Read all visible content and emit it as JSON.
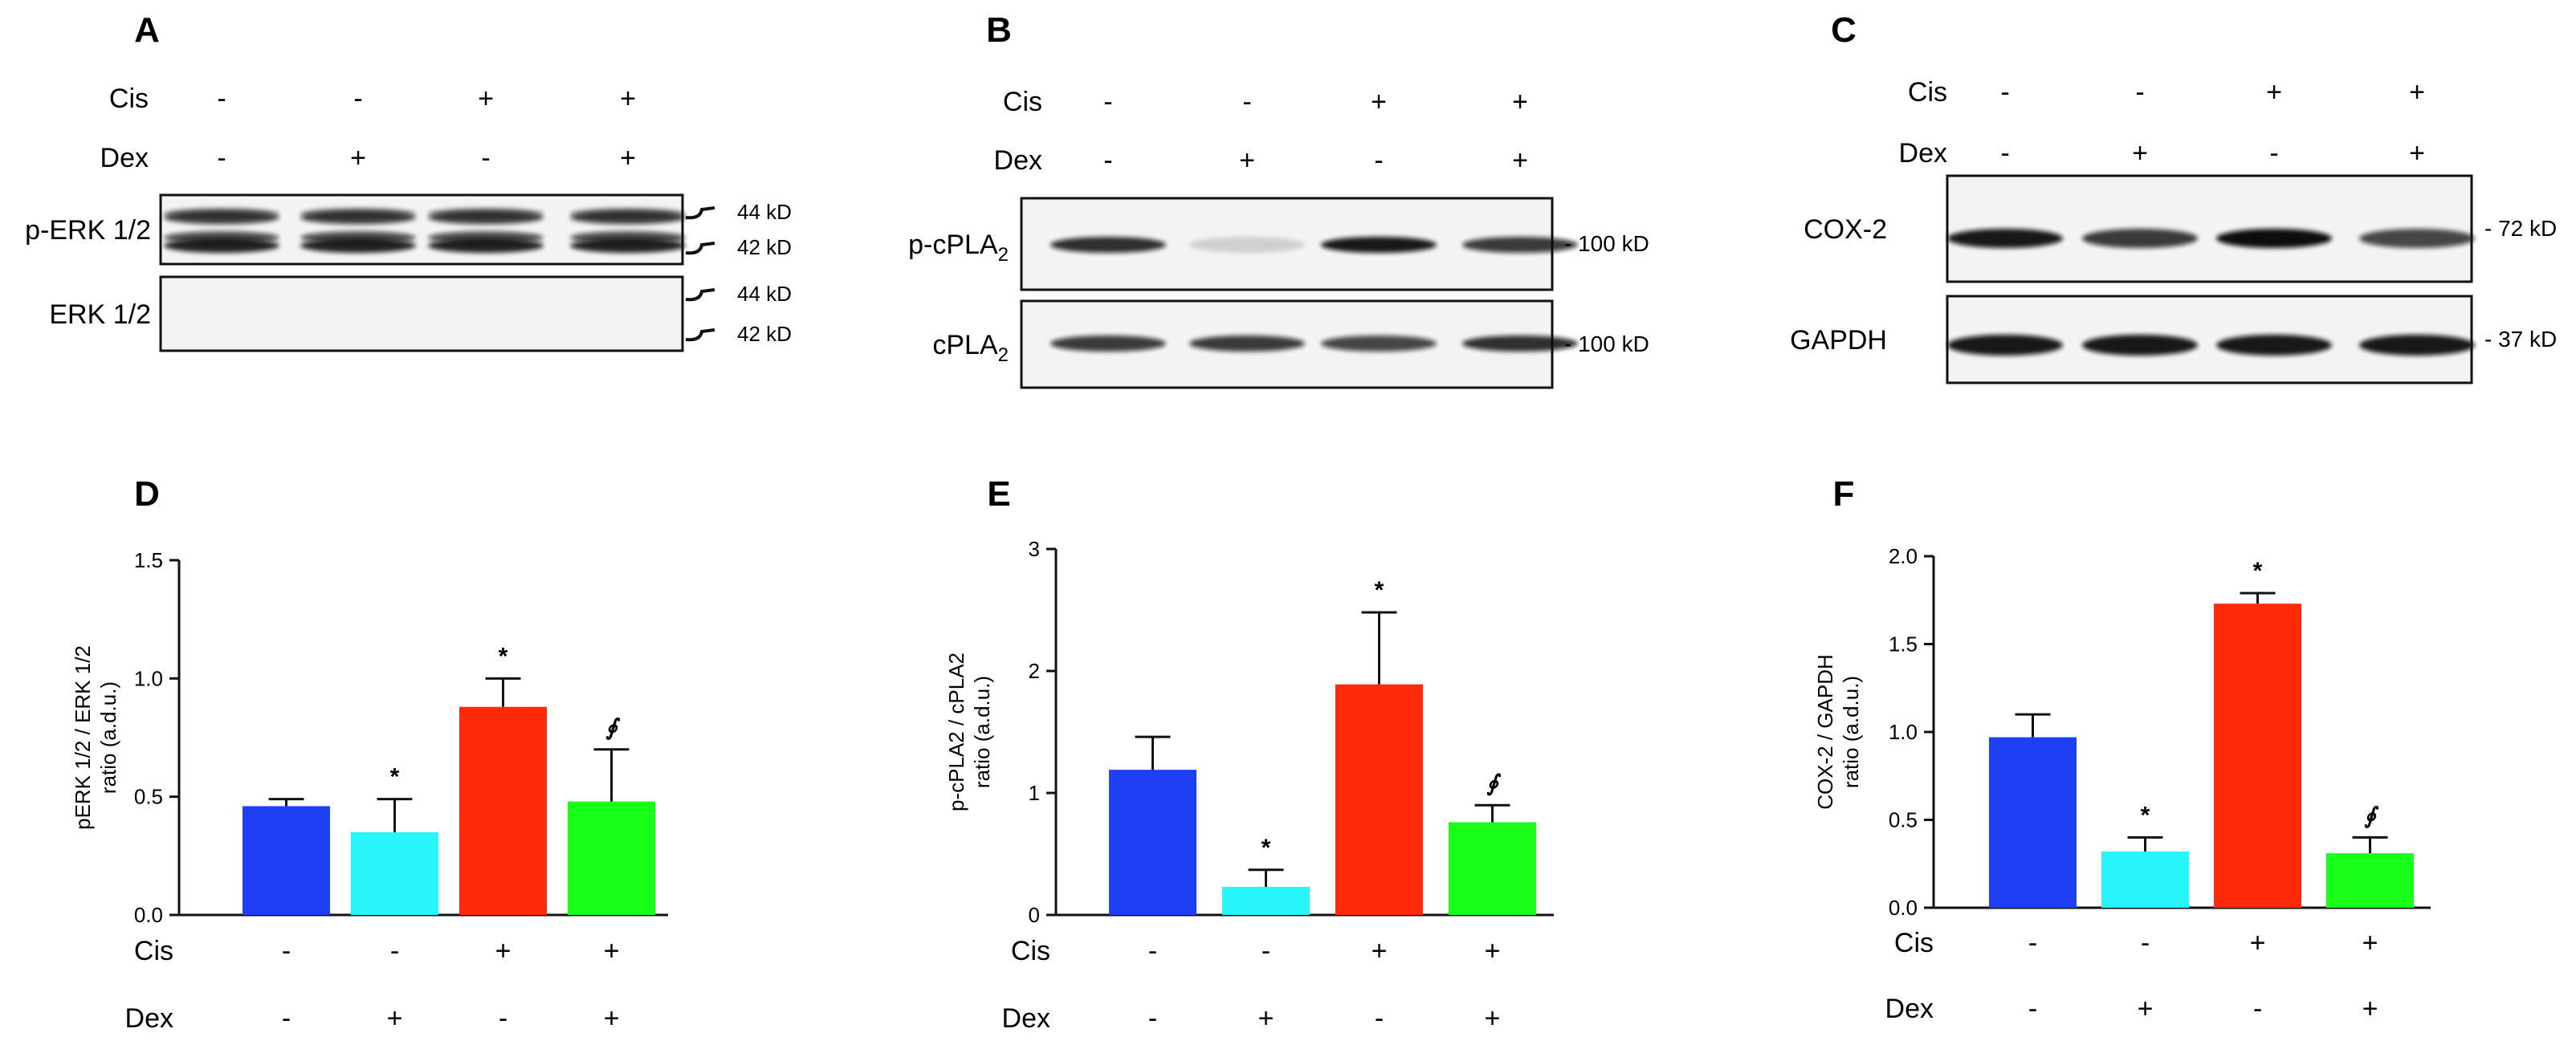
{
  "blots": [
    {
      "panel": "A",
      "cis": [
        "-",
        "-",
        "+",
        "+"
      ],
      "dex": [
        "-",
        "+",
        "-",
        "+"
      ],
      "rows": [
        {
          "label": "p-ERK 1/2",
          "sub": "",
          "kd": [
            "44 kD",
            "42 kD"
          ]
        },
        {
          "label": "ERK 1/2",
          "sub": "",
          "kd": [
            "44 kD",
            "42 kD"
          ]
        }
      ]
    },
    {
      "panel": "B",
      "cis": [
        "-",
        "-",
        "+",
        "+"
      ],
      "dex": [
        "-",
        "+",
        "-",
        "+"
      ],
      "rows": [
        {
          "label": "p-cPLA",
          "sub": "2",
          "kd": [
            "- 100 kD"
          ]
        },
        {
          "label": "cPLA",
          "sub": "2",
          "kd": [
            "- 100 kD"
          ]
        }
      ]
    },
    {
      "panel": "C",
      "cis": [
        "-",
        "-",
        "+",
        "+"
      ],
      "dex": [
        "-",
        "+",
        "-",
        "+"
      ],
      "rows": [
        {
          "label": "COX-2",
          "sub": "",
          "kd": [
            "- 72 kD"
          ]
        },
        {
          "label": "GAPDH",
          "sub": "",
          "kd": [
            "- 37 kD"
          ]
        }
      ]
    }
  ],
  "treatment_labels": {
    "cis": "Cis",
    "dex": "Dex"
  },
  "colors": [
    "#1f3ff5",
    "#27f5fa",
    "#ff2a0a",
    "#1aff1a"
  ],
  "chart_data": [
    {
      "panel": "D",
      "type": "bar",
      "categories": [
        "Cis- Dex-",
        "Cis- Dex+",
        "Cis+ Dex-",
        "Cis+ Dex+"
      ],
      "values": [
        0.46,
        0.35,
        0.88,
        0.48
      ],
      "errors": [
        0.03,
        0.14,
        0.12,
        0.22
      ],
      "annotations": [
        "",
        "*",
        "*",
        "∮"
      ],
      "ylabel": [
        "pERK 1/2 / ERK 1/2",
        "ratio (a.d.u.)"
      ],
      "ylim": [
        0,
        1.5
      ],
      "yticks": [
        0,
        0.5,
        1.0,
        1.5
      ],
      "ytick_labels": [
        "0.0",
        "0.5",
        "1.0",
        "1.5"
      ]
    },
    {
      "panel": "E",
      "type": "bar",
      "categories": [
        "Cis- Dex-",
        "Cis- Dex+",
        "Cis+ Dex-",
        "Cis+ Dex+"
      ],
      "values": [
        1.19,
        0.23,
        1.89,
        0.76
      ],
      "errors": [
        0.27,
        0.14,
        0.59,
        0.14
      ],
      "annotations": [
        "",
        "*",
        "*",
        "∮"
      ],
      "ylabel": [
        "p-cPLA2 / cPLA2",
        "ratio (a.d.u.)"
      ],
      "ylim": [
        0,
        3
      ],
      "yticks": [
        0,
        1,
        2,
        3
      ],
      "ytick_labels": [
        "0",
        "1",
        "2",
        "3"
      ]
    },
    {
      "panel": "F",
      "type": "bar",
      "categories": [
        "Cis- Dex-",
        "Cis- Dex+",
        "Cis+ Dex-",
        "Cis+ Dex+"
      ],
      "values": [
        0.97,
        0.32,
        1.73,
        0.31
      ],
      "errors": [
        0.13,
        0.08,
        0.06,
        0.09
      ],
      "annotations": [
        "",
        "*",
        "*",
        "∮"
      ],
      "ylabel": [
        "COX-2 / GAPDH",
        "ratio (a.d.u.)"
      ],
      "ylim": [
        0,
        2.0
      ],
      "yticks": [
        0,
        0.5,
        1.0,
        1.5,
        2.0
      ],
      "ytick_labels": [
        "0.0",
        "0.5",
        "1.0",
        "1.5",
        "2.0"
      ]
    }
  ]
}
